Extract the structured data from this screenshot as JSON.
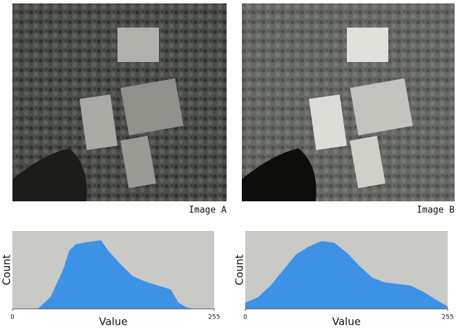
{
  "chart_data": [
    {
      "type": "area",
      "label": "Image A",
      "xlabel": "Value",
      "ylabel": "Count",
      "x": [
        0,
        32,
        48,
        64,
        72,
        80,
        96,
        112,
        120,
        136,
        152,
        168,
        184,
        200,
        210,
        220,
        230,
        255
      ],
      "values": [
        0,
        0,
        15,
        50,
        75,
        83,
        86,
        88,
        76,
        58,
        42,
        35,
        30,
        25,
        8,
        2,
        0,
        0
      ],
      "color": "#3d92e6",
      "xlim": [
        0,
        255
      ],
      "xticks": [
        0,
        255
      ],
      "ylim": [
        0,
        100
      ]
    },
    {
      "type": "area",
      "label": "Image B",
      "xlabel": "Value",
      "ylabel": "Count",
      "x": [
        0,
        16,
        32,
        48,
        64,
        80,
        96,
        112,
        128,
        144,
        160,
        176,
        192,
        208,
        224,
        240,
        255
      ],
      "values": [
        8,
        15,
        30,
        50,
        70,
        80,
        87,
        85,
        72,
        55,
        40,
        34,
        32,
        30,
        22,
        12,
        3
      ],
      "color": "#3d92e6",
      "xlim": [
        0,
        255
      ],
      "xticks": [
        0,
        255
      ],
      "ylim": [
        0,
        100
      ]
    }
  ]
}
